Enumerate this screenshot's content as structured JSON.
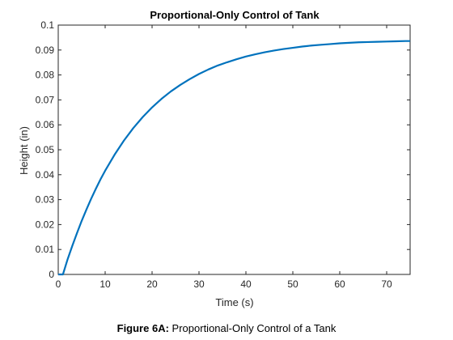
{
  "caption": {
    "label": "Figure 6A:",
    "text": "Proportional-Only Control of a Tank"
  },
  "chart_data": {
    "type": "line",
    "title": "Proportional-Only Control of Tank",
    "xlabel": "Time (s)",
    "ylabel": "Height (in)",
    "xlim": [
      0,
      75
    ],
    "ylim": [
      0,
      0.1
    ],
    "xticks": [
      0,
      10,
      20,
      30,
      40,
      50,
      60,
      70
    ],
    "yticks": [
      0,
      0.01,
      0.02,
      0.03,
      0.04,
      0.05,
      0.06,
      0.07,
      0.08,
      0.09,
      0.1
    ],
    "yticklabels": [
      "0",
      "0.01",
      "0.02",
      "0.03",
      "0.04",
      "0.05",
      "0.06",
      "0.07",
      "0.08",
      "0.09",
      "0.1"
    ],
    "grid": false,
    "line_color": "#0072BD",
    "series": [
      {
        "x": [
          0,
          1,
          2,
          3,
          4,
          5,
          6,
          7,
          8,
          9,
          10,
          12,
          14,
          16,
          18,
          20,
          22,
          24,
          26,
          28,
          30,
          32,
          34,
          36,
          38,
          40,
          42,
          44,
          46,
          48,
          50,
          52,
          54,
          56,
          58,
          60,
          62,
          64,
          66,
          68,
          70,
          72,
          74,
          75
        ],
        "y": [
          0,
          0,
          0.0061,
          0.0115,
          0.0166,
          0.0215,
          0.026,
          0.0303,
          0.0343,
          0.0381,
          0.0416,
          0.048,
          0.0537,
          0.0587,
          0.0631,
          0.067,
          0.0704,
          0.0734,
          0.076,
          0.0783,
          0.0804,
          0.0822,
          0.0838,
          0.0851,
          0.0863,
          0.0874,
          0.0883,
          0.0891,
          0.0898,
          0.0904,
          0.0909,
          0.0914,
          0.0918,
          0.0921,
          0.0924,
          0.0927,
          0.0929,
          0.0931,
          0.0932,
          0.0933,
          0.0934,
          0.0935,
          0.0936,
          0.0936
        ]
      }
    ]
  }
}
